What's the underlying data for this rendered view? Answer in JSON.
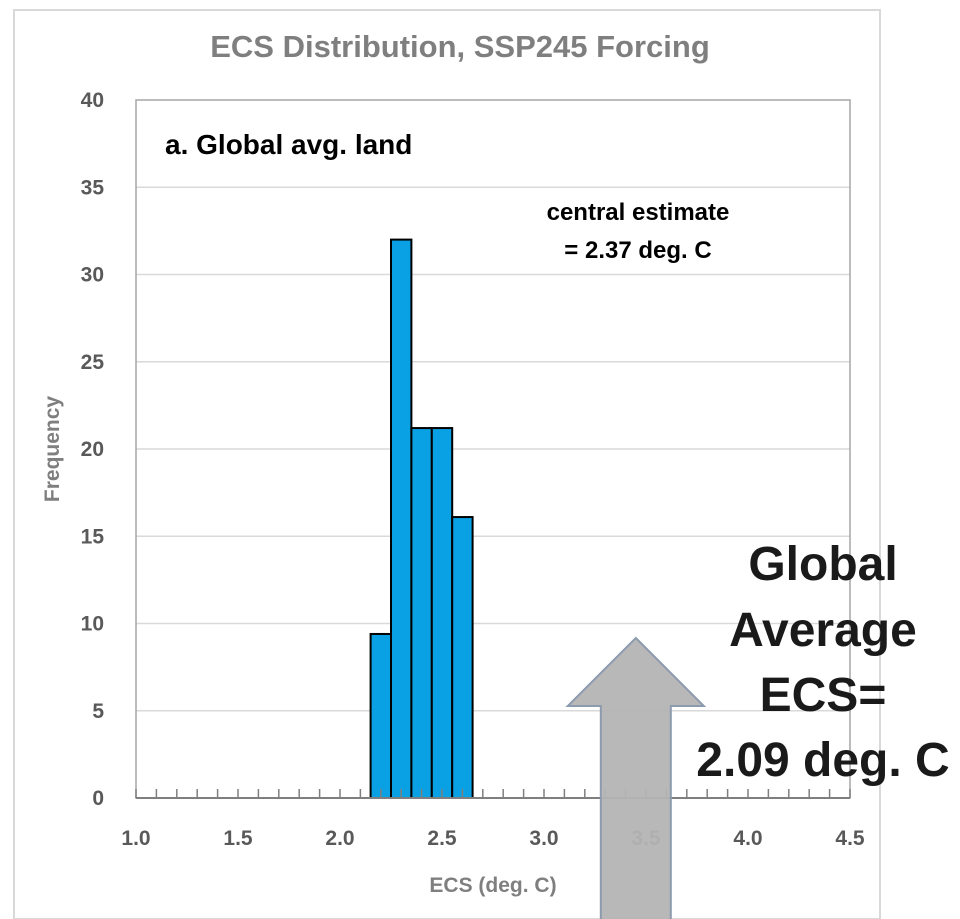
{
  "chart_data": {
    "type": "bar",
    "title": "ECS Distribution, SSP245 Forcing",
    "xlabel": "ECS (deg. C)",
    "ylabel": "Frequency",
    "xlim": [
      1.0,
      4.5
    ],
    "ylim": [
      0,
      40
    ],
    "xticks": [
      "1.0",
      "1.5",
      "2.0",
      "2.5",
      "3.0",
      "3.5",
      "4.0",
      "4.5"
    ],
    "yticks": [
      "0",
      "5",
      "10",
      "15",
      "20",
      "25",
      "30",
      "35",
      "40"
    ],
    "bin_width": 0.1,
    "bins": [
      {
        "start": 2.15,
        "end": 2.25,
        "value": 9.4
      },
      {
        "start": 2.25,
        "end": 2.35,
        "value": 32
      },
      {
        "start": 2.35,
        "end": 2.45,
        "value": 21.2
      },
      {
        "start": 2.45,
        "end": 2.55,
        "value": 21.2
      },
      {
        "start": 2.55,
        "end": 2.65,
        "value": 16.1
      }
    ],
    "bar_color": "#0aa0e4",
    "grid": "horizontal",
    "annotations": {
      "panel_label": "a. Global avg. land",
      "central_estimate_line1": "central estimate",
      "central_estimate_line2": "= 2.37 deg. C",
      "overlay_lines": [
        "Global",
        "Average",
        "ECS=",
        "2.09 deg. C"
      ],
      "arrow_value": 3.45
    }
  }
}
